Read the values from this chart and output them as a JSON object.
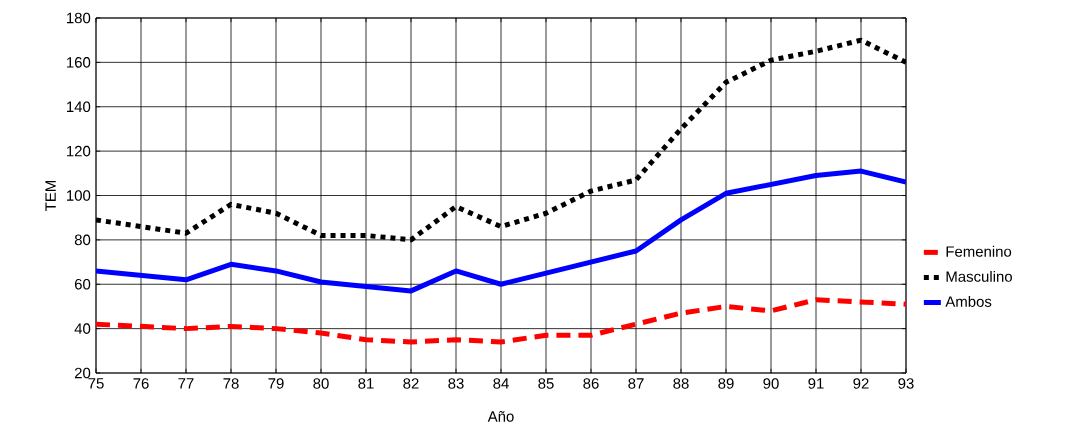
{
  "chart_data": {
    "type": "line",
    "xlabel": "Año",
    "ylabel": "TEM",
    "x": [
      75,
      76,
      77,
      78,
      79,
      80,
      81,
      82,
      83,
      84,
      85,
      86,
      87,
      88,
      89,
      90,
      91,
      92,
      93
    ],
    "xlim": [
      75,
      93
    ],
    "xticks": [
      75,
      76,
      77,
      78,
      79,
      80,
      81,
      82,
      83,
      84,
      85,
      86,
      87,
      88,
      89,
      90,
      91,
      92,
      93
    ],
    "ylim": [
      20,
      180
    ],
    "yticks": [
      20,
      40,
      60,
      80,
      100,
      120,
      140,
      160,
      180
    ],
    "grid": true,
    "legend": "right",
    "series": [
      {
        "name": "Femenino",
        "color": "#ff0000",
        "line_style": "dashed",
        "values": [
          42,
          41,
          40,
          41,
          40,
          38,
          35,
          34,
          35,
          34,
          37,
          37,
          42,
          47,
          50,
          48,
          53,
          52,
          51
        ]
      },
      {
        "name": "Masculino",
        "color": "#000000",
        "line_style": "dotted",
        "values": [
          89,
          86,
          83,
          96,
          92,
          82,
          82,
          80,
          95,
          86,
          92,
          102,
          107,
          130,
          151,
          161,
          165,
          170,
          160
        ]
      },
      {
        "name": "Ambos",
        "color": "#0000ff",
        "line_style": "solid",
        "values": [
          66,
          64,
          62,
          69,
          66,
          61,
          59,
          57,
          66,
          60,
          65,
          70,
          75,
          89,
          101,
          105,
          109,
          111,
          106
        ]
      }
    ]
  }
}
